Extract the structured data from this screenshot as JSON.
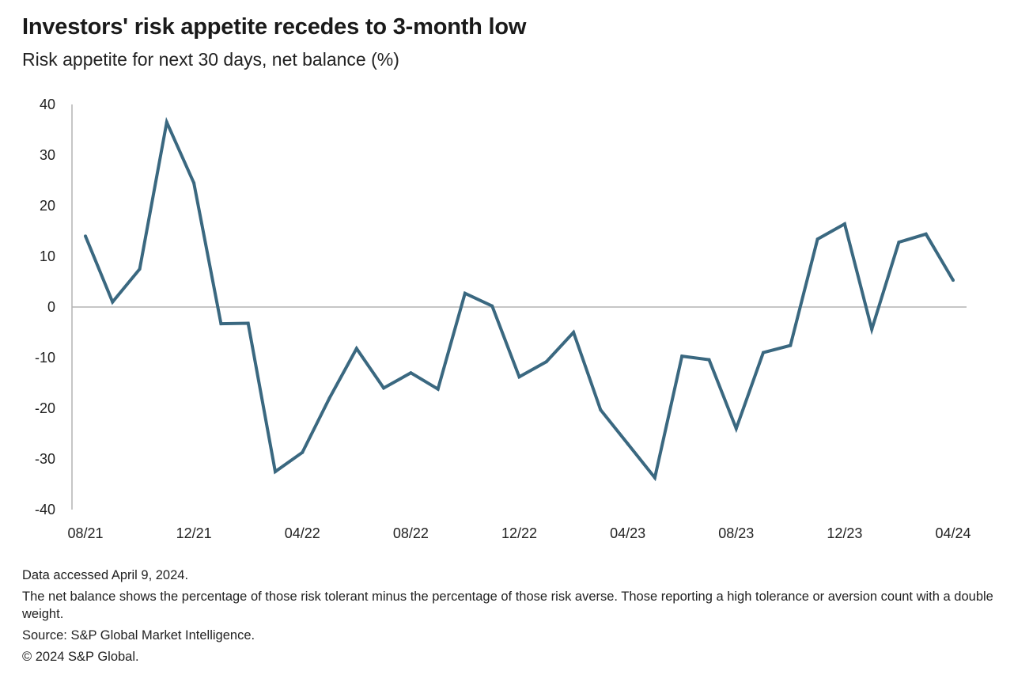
{
  "title": "Investors' risk appetite recedes to 3-month low",
  "subtitle": "Risk appetite for next 30 days, net balance (%)",
  "notes": {
    "accessed": "Data accessed April 9, 2024.",
    "definition": "The net balance shows the percentage of those risk tolerant minus the percentage of those risk averse. Those reporting a high tolerance or aversion count with a double weight.",
    "source": "Source: S&P Global Market Intelligence.",
    "copyright": "© 2024 S&P Global."
  },
  "colors": {
    "line": "#3a6880",
    "axis": "#b3b3b3"
  },
  "chart_data": {
    "type": "line",
    "title": "Investors' risk appetite recedes to 3-month low",
    "xlabel": "",
    "ylabel": "Risk appetite for next 30 days, net balance (%)",
    "ylim": [
      -40,
      40
    ],
    "yticks": [
      40,
      30,
      20,
      10,
      0,
      -10,
      -20,
      -30,
      -40
    ],
    "xtick_labels": [
      "08/21",
      "12/21",
      "04/22",
      "08/22",
      "12/22",
      "04/23",
      "08/23",
      "12/23",
      "04/24"
    ],
    "grid": false,
    "x": [
      "08/21",
      "09/21",
      "10/21",
      "11/21",
      "12/21",
      "01/22",
      "02/22",
      "03/22",
      "04/22",
      "05/22",
      "06/22",
      "07/22",
      "08/22",
      "09/22",
      "10/22",
      "11/22",
      "12/22",
      "01/23",
      "02/23",
      "03/23",
      "04/23",
      "05/23",
      "06/23",
      "07/23",
      "08/23",
      "09/23",
      "10/23",
      "11/23",
      "12/23",
      "01/24",
      "02/24",
      "03/24",
      "04/24"
    ],
    "series": [
      {
        "name": "Risk appetite net balance",
        "values": [
          14,
          1,
          7.5,
          36.5,
          24.5,
          -3.3,
          -3.2,
          -32.5,
          -28.7,
          -18,
          -8.2,
          -16,
          -13,
          -16.2,
          2.7,
          0.2,
          -13.8,
          -10.8,
          -5,
          -20.3,
          -27,
          -33.7,
          -9.7,
          -10.4,
          -24,
          -9,
          -7.6,
          13.4,
          16.4,
          -4.4,
          12.8,
          14.4,
          5.3
        ]
      }
    ]
  }
}
